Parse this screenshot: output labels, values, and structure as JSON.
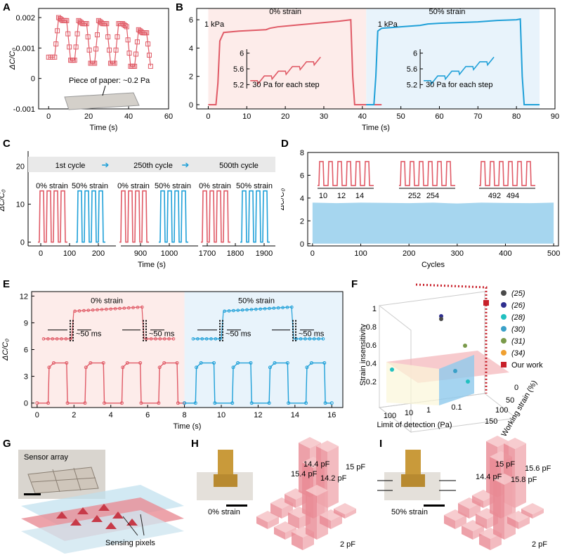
{
  "colors": {
    "red": "#e05a66",
    "blue": "#1fa0d8",
    "lightblue": "#a6d6ef",
    "pinkbg": "#fdecea",
    "bluebg": "#e8f3fb"
  },
  "panel_labels": [
    "A",
    "B",
    "C",
    "D",
    "E",
    "F",
    "G",
    "H",
    "I"
  ],
  "chart_data": [
    {
      "id": "A",
      "type": "line",
      "xlabel": "Time (s)",
      "ylabel": "ΔC/C₀",
      "xlim": [
        -5,
        60
      ],
      "ylim": [
        -0.001,
        0.0023
      ],
      "xticks": [
        "0",
        "20",
        "40",
        "60"
      ],
      "yticks": [
        "-0.001",
        "0",
        "0.001",
        "0.002"
      ],
      "annotation": "Piece of paper: ~0.2 Pa",
      "series": [
        {
          "name": "response",
          "x": [
            0,
            3,
            5,
            7,
            9,
            11,
            13,
            15,
            17,
            19,
            21,
            23,
            25,
            27,
            29,
            31,
            33,
            35,
            37,
            39,
            41,
            43,
            45,
            47,
            49,
            51
          ],
          "values": [
            0.0007,
            0.0007,
            0.002,
            0.0019,
            0.0019,
            0.0006,
            0.0006,
            0.0019,
            0.0018,
            0.0018,
            0.0005,
            0.0005,
            0.0019,
            0.0018,
            0.0018,
            0.0005,
            0.0005,
            0.0018,
            0.0018,
            0.0017,
            0.0004,
            0.0004,
            0.0016,
            0.0015,
            0.0015,
            0.0004
          ]
        }
      ]
    },
    {
      "id": "B",
      "type": "line",
      "xlabel": "Time (s)",
      "ylabel": "ΔC/C₀",
      "xlim": [
        -3,
        90
      ],
      "ylim": [
        -0.3,
        6.8
      ],
      "xticks": [
        "0",
        "10",
        "20",
        "30",
        "40",
        "50",
        "60",
        "70",
        "80",
        "90"
      ],
      "yticks": [
        "0",
        "2",
        "4",
        "6"
      ],
      "labels": {
        "left_title": "0% strain",
        "right_title": "50% strain",
        "pressure_left": "1 kPa",
        "pressure_right": "1 kPa",
        "inset_note_left": "30 Pa for each step",
        "inset_note_right": "30 Pa for each step"
      },
      "inset_yticks_left": [
        "5.2",
        "5.6",
        "6"
      ],
      "inset_yticks_right": [
        "5.2",
        "5.6",
        "6"
      ],
      "series": [
        {
          "name": "0% strain",
          "x": [
            0,
            2,
            2.5,
            3,
            4,
            8,
            15,
            16,
            18,
            22,
            26,
            30,
            34,
            37,
            37.5,
            38,
            45
          ],
          "values": [
            0,
            0,
            1.5,
            4.5,
            5.1,
            5.2,
            5.3,
            5.4,
            5.5,
            5.6,
            5.7,
            5.8,
            5.9,
            6.0,
            2,
            0,
            0
          ]
        },
        {
          "name": "50% strain",
          "x": [
            41,
            43,
            43.5,
            44,
            45,
            50,
            55,
            57,
            60,
            65,
            70,
            75,
            80,
            81,
            81.5,
            82,
            86
          ],
          "values": [
            0,
            0,
            2,
            5.2,
            5.4,
            5.5,
            5.6,
            5.7,
            5.75,
            5.8,
            5.85,
            5.95,
            6.0,
            6.05,
            2,
            0,
            0
          ]
        }
      ]
    },
    {
      "id": "C",
      "type": "line",
      "xlabel": "Time (s)",
      "ylabel": "ΔC/C₀",
      "ylim": [
        -1,
        24
      ],
      "yticks": [
        "0",
        "10",
        "20"
      ],
      "xticks": [
        "0",
        "100",
        "200",
        "900",
        "1000",
        "1700",
        "1800",
        "1900"
      ],
      "cycle_labels": [
        "1st cycle",
        "250th cycle",
        "500th cycle"
      ],
      "strain_labels": [
        "0% strain",
        "50% strain",
        "0% strain",
        "50% strain",
        "0% strain",
        "50% strain"
      ],
      "series": [
        {
          "name": "pulse groups",
          "pulses_per_group": 4,
          "peak": 13.5,
          "colors": [
            "red",
            "blue",
            "red",
            "blue",
            "red",
            "blue"
          ]
        }
      ]
    },
    {
      "id": "D",
      "type": "area",
      "xlabel": "Cycles",
      "ylabel": "ΔC/C₀",
      "xlim": [
        -10,
        510
      ],
      "ylim": [
        -0.2,
        8
      ],
      "xticks": [
        "0",
        "100",
        "200",
        "300",
        "400",
        "500"
      ],
      "yticks": [
        "0",
        "2",
        "4",
        "6",
        "8"
      ],
      "series": [
        {
          "name": "cycling envelope",
          "values": [
            3.6,
            3.55,
            3.6,
            3.58,
            3.55,
            3.6,
            3.52,
            3.6,
            3.57,
            3.55,
            3.6
          ]
        }
      ],
      "inset_ticks": [
        [
          "10",
          "12",
          "14"
        ],
        [
          "252",
          "254"
        ],
        [
          "492",
          "494"
        ]
      ]
    },
    {
      "id": "E",
      "type": "line",
      "xlabel": "Time (s)",
      "ylabel": "ΔC/C₀",
      "xlim": [
        -0.3,
        16.6
      ],
      "ylim": [
        -0.5,
        12.5
      ],
      "xticks": [
        "0",
        "2",
        "4",
        "6",
        "8",
        "10",
        "12",
        "14",
        "16"
      ],
      "yticks": [
        "0",
        "3",
        "6",
        "9",
        "12"
      ],
      "labels": {
        "left_title": "0% strain",
        "right_title": "50% strain",
        "response": "~50 ms"
      },
      "series": [
        {
          "name": "0% strain",
          "on": [
            0.6,
            2.6,
            4.6,
            6.6
          ],
          "off": [
            1.6,
            3.6,
            5.6,
            7.6
          ],
          "peak": 4.5
        },
        {
          "name": "50% strain",
          "on": [
            8.6,
            10.6,
            12.6,
            14.6
          ],
          "off": [
            9.6,
            11.6,
            13.6,
            15.6
          ],
          "peak": 4.5
        }
      ]
    },
    {
      "id": "F",
      "type": "scatter",
      "xlabel": "Limit of detection (Pa)",
      "ylabel": "Strain insensitivity",
      "zlabel": "Working strain (%)",
      "xticks": [
        "100",
        "10",
        "1",
        "0.1"
      ],
      "yticks": [
        "0.2",
        "0.4",
        "0.6",
        "0.8",
        "1"
      ],
      "zticks": [
        "0",
        "50",
        "100",
        "150"
      ],
      "legend": [
        {
          "label": "(25)",
          "color": "#4a4a4a"
        },
        {
          "label": "(26)",
          "color": "#2f2f8f"
        },
        {
          "label": "(28)",
          "color": "#20c0c0"
        },
        {
          "label": "(30)",
          "color": "#3aa0c8"
        },
        {
          "label": "(31)",
          "color": "#7a9a4a"
        },
        {
          "label": "(34)",
          "color": "#f0a030"
        },
        {
          "label": "Our work",
          "color": "#c8202a"
        }
      ]
    }
  ],
  "photos": {
    "G_title": "Sensor array",
    "G_pixels": "Sensing pixels",
    "H_strain": "0% strain",
    "I_strain": "50% strain",
    "H_values": [
      "14.4 pF",
      "15 pF",
      "15.4 pF",
      "14.2 pF",
      "2 pF"
    ],
    "I_values": [
      "15 pF",
      "15.6 pF",
      "14.4 pF",
      "15.8 pF",
      "2 pF"
    ]
  }
}
